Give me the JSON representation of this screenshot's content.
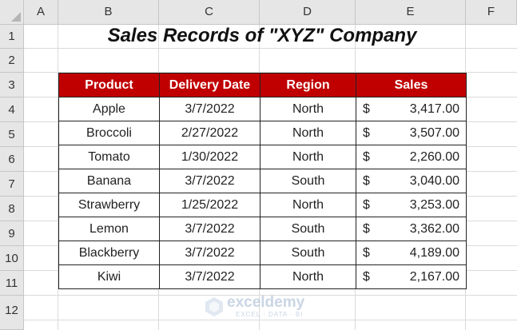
{
  "columns": [
    "A",
    "B",
    "C",
    "D",
    "E",
    "F"
  ],
  "rows": [
    "1",
    "2",
    "3",
    "4",
    "5",
    "6",
    "7",
    "8",
    "9",
    "10",
    "11",
    "12"
  ],
  "title": "Sales Records of \"XYZ\" Company",
  "table": {
    "headers": [
      "Product",
      "Delivery Date",
      "Region",
      "Sales"
    ],
    "records": [
      {
        "product": "Apple",
        "date": "3/7/2022",
        "region": "North",
        "currency": "$",
        "sales": "3,417.00"
      },
      {
        "product": "Broccoli",
        "date": "2/27/2022",
        "region": "North",
        "currency": "$",
        "sales": "3,507.00"
      },
      {
        "product": "Tomato",
        "date": "1/30/2022",
        "region": "North",
        "currency": "$",
        "sales": "2,260.00"
      },
      {
        "product": "Banana",
        "date": "3/7/2022",
        "region": "South",
        "currency": "$",
        "sales": "3,040.00"
      },
      {
        "product": "Strawberry",
        "date": "1/25/2022",
        "region": "North",
        "currency": "$",
        "sales": "3,253.00"
      },
      {
        "product": "Lemon",
        "date": "3/7/2022",
        "region": "South",
        "currency": "$",
        "sales": "3,362.00"
      },
      {
        "product": "Blackberry",
        "date": "3/7/2022",
        "region": "South",
        "currency": "$",
        "sales": "4,189.00"
      },
      {
        "product": "Kiwi",
        "date": "3/7/2022",
        "region": "North",
        "currency": "$",
        "sales": "2,167.00"
      }
    ]
  },
  "watermark": {
    "name": "exceldemy",
    "tagline": "EXCEL · DATA · BI"
  },
  "colors": {
    "header_fill": "#c00000",
    "header_text": "#ffffff",
    "grid_header": "#e6e6e6"
  }
}
